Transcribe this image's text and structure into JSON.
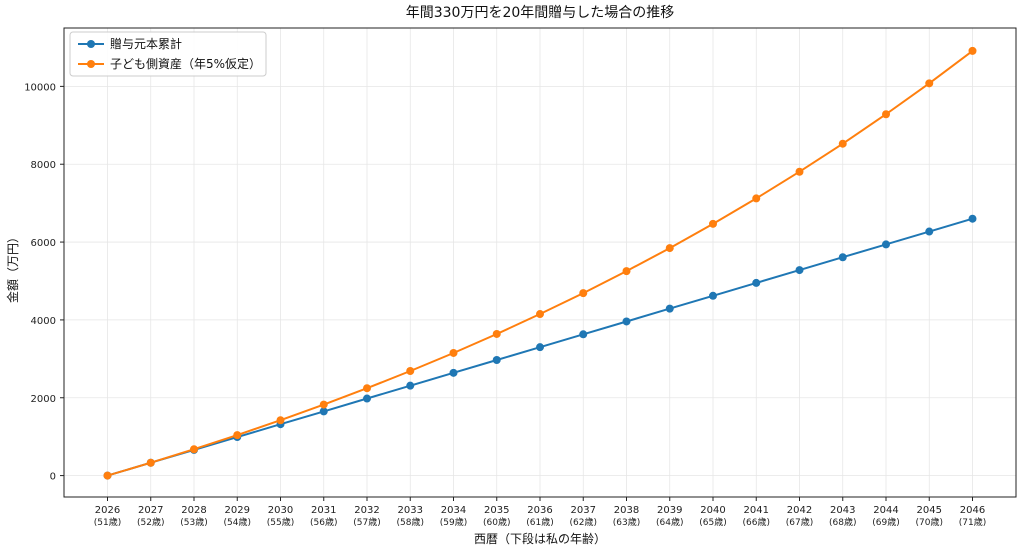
{
  "chart_data": {
    "type": "line",
    "title": "年間330万円を20年間贈与した場合の推移",
    "xlabel": "西暦（下段は私の年齢）",
    "ylabel": "金額（万円）",
    "categories": [
      "2026",
      "2027",
      "2028",
      "2029",
      "2030",
      "2031",
      "2032",
      "2033",
      "2034",
      "2035",
      "2036",
      "2037",
      "2038",
      "2039",
      "2040",
      "2041",
      "2042",
      "2043",
      "2044",
      "2045",
      "2046"
    ],
    "category_sublabels": [
      "(51歳)",
      "(52歳)",
      "(53歳)",
      "(54歳)",
      "(55歳)",
      "(56歳)",
      "(57歳)",
      "(58歳)",
      "(59歳)",
      "(60歳)",
      "(61歳)",
      "(62歳)",
      "(63歳)",
      "(64歳)",
      "(65歳)",
      "(66歳)",
      "(67歳)",
      "(68歳)",
      "(69歳)",
      "(70歳)",
      "(71歳)"
    ],
    "ylim": [
      -550,
      11500
    ],
    "yticks": [
      0,
      2000,
      4000,
      6000,
      8000,
      10000
    ],
    "grid": true,
    "legend_position": "top-left",
    "series": [
      {
        "name": "贈与元本累計",
        "color": "#1f77b4",
        "values": [
          0,
          330,
          660,
          990,
          1320,
          1650,
          1980,
          2310,
          2640,
          2970,
          3300,
          3630,
          3960,
          4290,
          4620,
          4950,
          5280,
          5610,
          5940,
          6270,
          6600
        ]
      },
      {
        "name": "子ども側資産（年5%仮定）",
        "color": "#ff7f0e",
        "values": [
          0,
          330,
          677,
          1040,
          1422,
          1824,
          2245,
          2687,
          3151,
          3639,
          4151,
          4688,
          5253,
          5845,
          6468,
          7121,
          7807,
          8527,
          9284,
          10078,
          10912
        ]
      }
    ]
  }
}
